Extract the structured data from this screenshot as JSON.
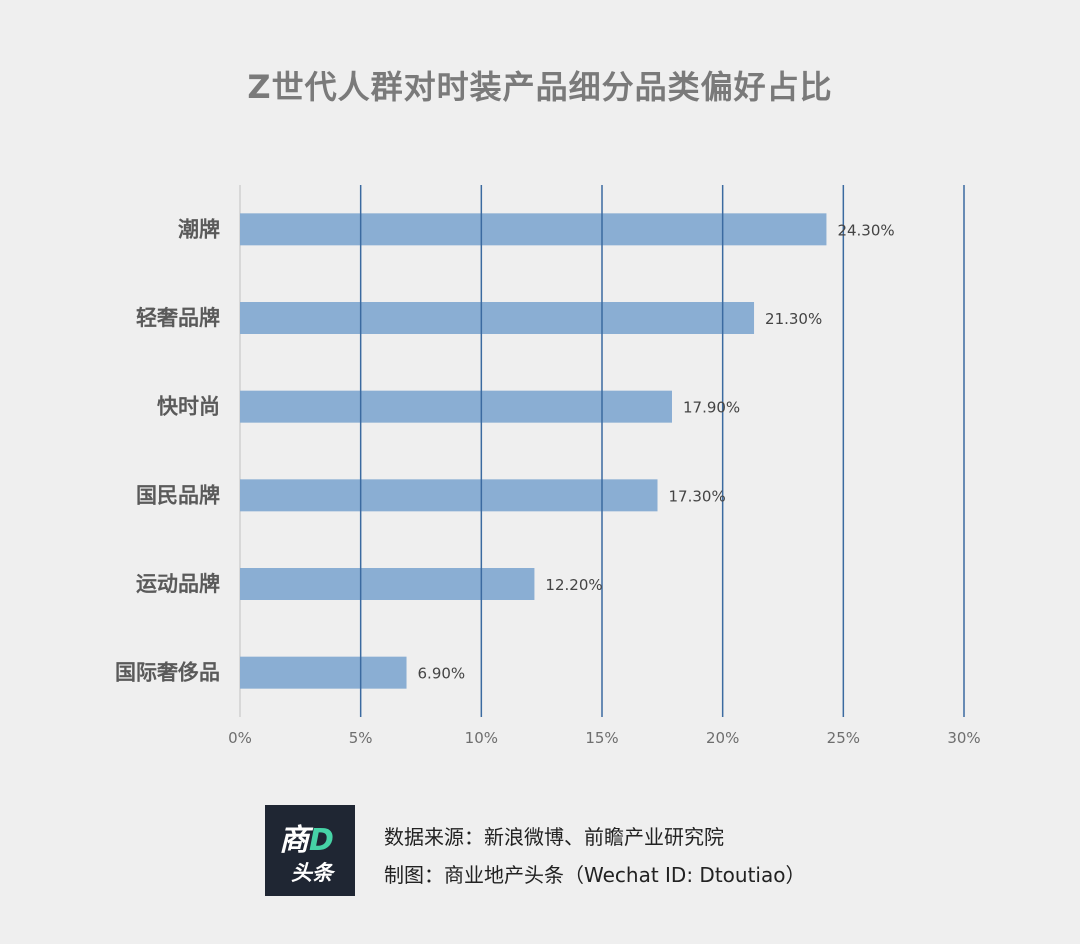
{
  "chart_data": {
    "type": "bar",
    "orientation": "horizontal",
    "title": "Z世代人群对时装产品细分品类偏好占比",
    "categories": [
      "潮牌",
      "轻奢品牌",
      "快时尚",
      "国民品牌",
      "运动品牌",
      "国际奢侈品"
    ],
    "values": [
      24.3,
      21.3,
      17.9,
      17.3,
      12.2,
      6.9
    ],
    "value_labels": [
      "24.30%",
      "21.30%",
      "17.90%",
      "17.30%",
      "12.20%",
      "6.90%"
    ],
    "x_ticks": [
      0,
      5,
      10,
      15,
      20,
      25,
      30
    ],
    "x_tick_labels": [
      "0%",
      "5%",
      "10%",
      "15%",
      "20%",
      "25%",
      "30%"
    ],
    "xlim": [
      0,
      30
    ],
    "xlabel": "",
    "ylabel": "",
    "grid": "vertical",
    "bar_color": "#8aaed3",
    "grid_color": "#3b6aa0"
  },
  "footer": {
    "logo_top_1": "商",
    "logo_top_2": "D",
    "logo_bottom": "头条",
    "source": "数据来源：新浪微博、前瞻产业研究院",
    "credit": "制图：商业地产头条（Wechat ID: Dtoutiao）"
  }
}
